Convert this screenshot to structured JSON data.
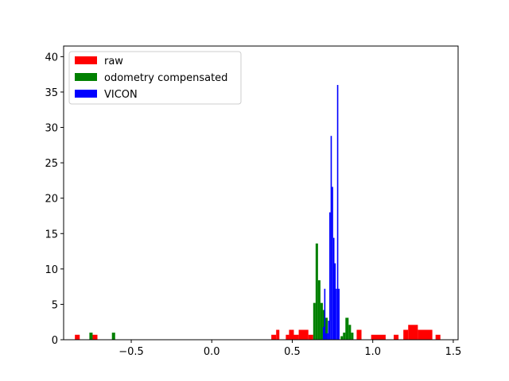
{
  "chart_data": {
    "type": "histogram",
    "title": "",
    "xlabel": "",
    "ylabel": "",
    "xlim": [
      -0.92,
      1.53
    ],
    "ylim": [
      0,
      41.5
    ],
    "xticks": [
      -0.5,
      0.0,
      0.5,
      1.0,
      1.5
    ],
    "xtick_labels": [
      "−0.5",
      "0.0",
      "0.5",
      "1.0",
      "1.5"
    ],
    "yticks": [
      0,
      5,
      10,
      15,
      20,
      25,
      30,
      35,
      40
    ],
    "ytick_labels": [
      "0",
      "5",
      "10",
      "15",
      "20",
      "25",
      "30",
      "35",
      "40"
    ],
    "legend": {
      "location": "upper-left",
      "entries": [
        "raw",
        "odometry compensated",
        "VICON"
      ]
    },
    "series": [
      {
        "name": "raw",
        "color": "#ff0000",
        "bins": [
          {
            "x0": -0.85,
            "x1": -0.82,
            "count": 0.7
          },
          {
            "x0": -0.74,
            "x1": -0.71,
            "count": 0.7
          },
          {
            "x0": 0.37,
            "x1": 0.4,
            "count": 0.7
          },
          {
            "x0": 0.4,
            "x1": 0.42,
            "count": 1.4
          },
          {
            "x0": 0.46,
            "x1": 0.48,
            "count": 0.7
          },
          {
            "x0": 0.48,
            "x1": 0.51,
            "count": 1.4
          },
          {
            "x0": 0.51,
            "x1": 0.54,
            "count": 0.7
          },
          {
            "x0": 0.54,
            "x1": 0.6,
            "count": 1.4
          },
          {
            "x0": 0.6,
            "x1": 0.63,
            "count": 0.7
          },
          {
            "x0": 0.9,
            "x1": 0.93,
            "count": 1.4
          },
          {
            "x0": 0.99,
            "x1": 1.08,
            "count": 0.7
          },
          {
            "x0": 1.13,
            "x1": 1.16,
            "count": 0.7
          },
          {
            "x0": 1.19,
            "x1": 1.22,
            "count": 1.4
          },
          {
            "x0": 1.22,
            "x1": 1.28,
            "count": 2.1
          },
          {
            "x0": 1.28,
            "x1": 1.37,
            "count": 1.4
          },
          {
            "x0": 1.39,
            "x1": 1.42,
            "count": 0.7
          }
        ]
      },
      {
        "name": "odometry compensated",
        "color": "#008000",
        "bins": [
          {
            "x0": -0.76,
            "x1": -0.74,
            "count": 1.0
          },
          {
            "x0": -0.62,
            "x1": -0.6,
            "count": 1.0
          },
          {
            "x0": 0.63,
            "x1": 0.645,
            "count": 5.2
          },
          {
            "x0": 0.645,
            "x1": 0.66,
            "count": 13.6
          },
          {
            "x0": 0.66,
            "x1": 0.675,
            "count": 8.4
          },
          {
            "x0": 0.675,
            "x1": 0.69,
            "count": 5.2
          },
          {
            "x0": 0.69,
            "x1": 0.705,
            "count": 4.2
          },
          {
            "x0": 0.705,
            "x1": 0.72,
            "count": 3.1
          },
          {
            "x0": 0.8,
            "x1": 0.815,
            "count": 0.5
          },
          {
            "x0": 0.815,
            "x1": 0.83,
            "count": 1.0
          },
          {
            "x0": 0.83,
            "x1": 0.85,
            "count": 3.1
          },
          {
            "x0": 0.85,
            "x1": 0.865,
            "count": 2.1
          },
          {
            "x0": 0.865,
            "x1": 0.88,
            "count": 1.0
          }
        ]
      },
      {
        "name": "VICON",
        "color": "#0000ff",
        "bins": [
          {
            "x0": 0.69,
            "x1": 0.698,
            "count": 1.8
          },
          {
            "x0": 0.698,
            "x1": 0.706,
            "count": 7.2
          },
          {
            "x0": 0.706,
            "x1": 0.714,
            "count": 0.9
          },
          {
            "x0": 0.714,
            "x1": 0.722,
            "count": 0.9
          },
          {
            "x0": 0.722,
            "x1": 0.73,
            "count": 2.7
          },
          {
            "x0": 0.73,
            "x1": 0.738,
            "count": 18.0
          },
          {
            "x0": 0.738,
            "x1": 0.746,
            "count": 28.8
          },
          {
            "x0": 0.746,
            "x1": 0.754,
            "count": 21.6
          },
          {
            "x0": 0.754,
            "x1": 0.762,
            "count": 14.4
          },
          {
            "x0": 0.762,
            "x1": 0.77,
            "count": 10.8
          },
          {
            "x0": 0.77,
            "x1": 0.778,
            "count": 7.2
          },
          {
            "x0": 0.778,
            "x1": 0.786,
            "count": 36.0
          },
          {
            "x0": 0.786,
            "x1": 0.794,
            "count": 7.2
          }
        ]
      }
    ]
  }
}
